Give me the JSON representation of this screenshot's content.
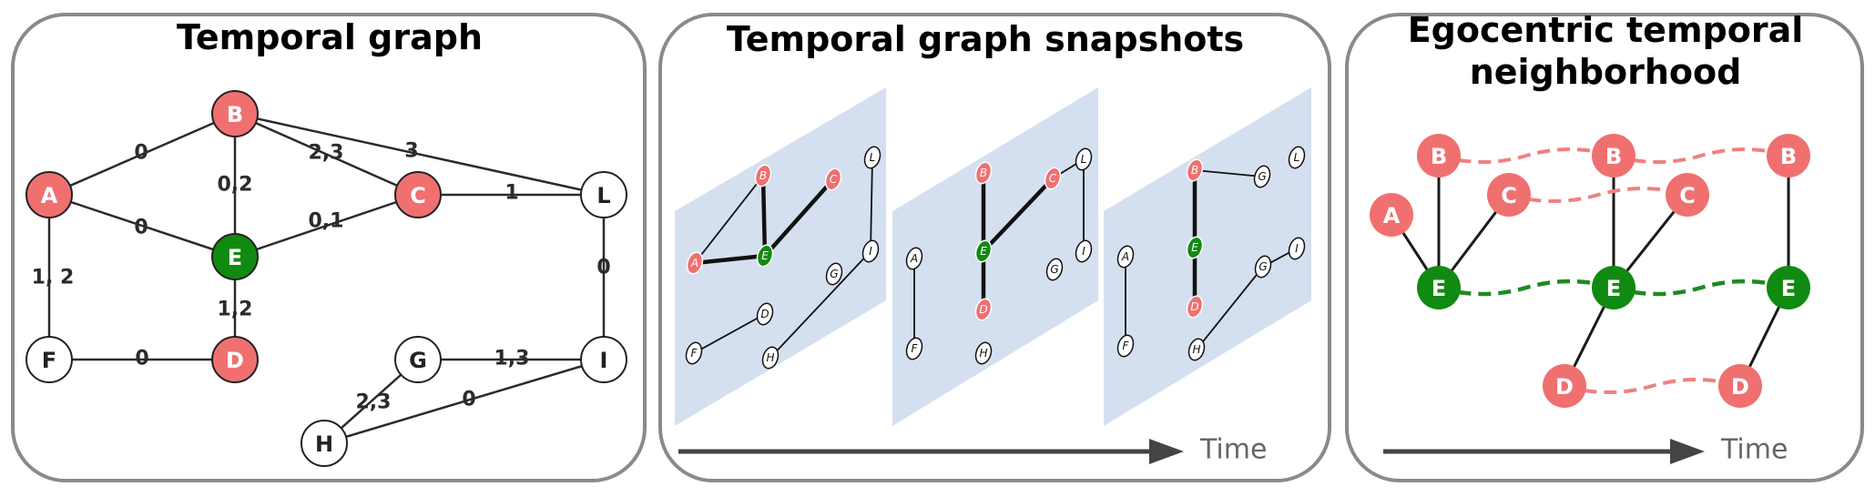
{
  "colors": {
    "red_node": "#f07070",
    "green_node": "#118a11",
    "white_node": "#ffffff",
    "plane": "#d4e0f0",
    "dash_red": "#f08080",
    "dash_green": "#1f8a1f"
  },
  "panel1": {
    "title": "Temporal graph",
    "nodes": [
      {
        "id": "A",
        "color": "red"
      },
      {
        "id": "B",
        "color": "red"
      },
      {
        "id": "C",
        "color": "red"
      },
      {
        "id": "D",
        "color": "red"
      },
      {
        "id": "E",
        "color": "green"
      },
      {
        "id": "F",
        "color": "white"
      },
      {
        "id": "G",
        "color": "white"
      },
      {
        "id": "H",
        "color": "white"
      },
      {
        "id": "I",
        "color": "white"
      },
      {
        "id": "L",
        "color": "white"
      }
    ],
    "edges": [
      {
        "from": "A",
        "to": "B",
        "label": "0"
      },
      {
        "from": "A",
        "to": "E",
        "label": "0"
      },
      {
        "from": "A",
        "to": "F",
        "label": "1, 2"
      },
      {
        "from": "B",
        "to": "E",
        "label": "0,2"
      },
      {
        "from": "B",
        "to": "C",
        "label": "2,3"
      },
      {
        "from": "B",
        "to": "L",
        "label": "3"
      },
      {
        "from": "C",
        "to": "L",
        "label": "1"
      },
      {
        "from": "C",
        "to": "E",
        "label": "0,1"
      },
      {
        "from": "E",
        "to": "D",
        "label": "1,2"
      },
      {
        "from": "F",
        "to": "D",
        "label": "0"
      },
      {
        "from": "L",
        "to": "I",
        "label": "0"
      },
      {
        "from": "G",
        "to": "I",
        "label": "1,3"
      },
      {
        "from": "G",
        "to": "H",
        "label": "2,3"
      },
      {
        "from": "H",
        "to": "I",
        "label": "0"
      }
    ]
  },
  "panel2": {
    "title": "Temporal graph snapshots",
    "time_label": "Time",
    "node_labels": [
      "A",
      "B",
      "C",
      "D",
      "E",
      "F",
      "G",
      "H",
      "I",
      "L"
    ]
  },
  "panel3": {
    "title_line1": "Egocentric temporal",
    "title_line2": "neighborhood",
    "time_label": "Time",
    "node_labels": [
      "A",
      "B",
      "C",
      "D",
      "E"
    ]
  }
}
